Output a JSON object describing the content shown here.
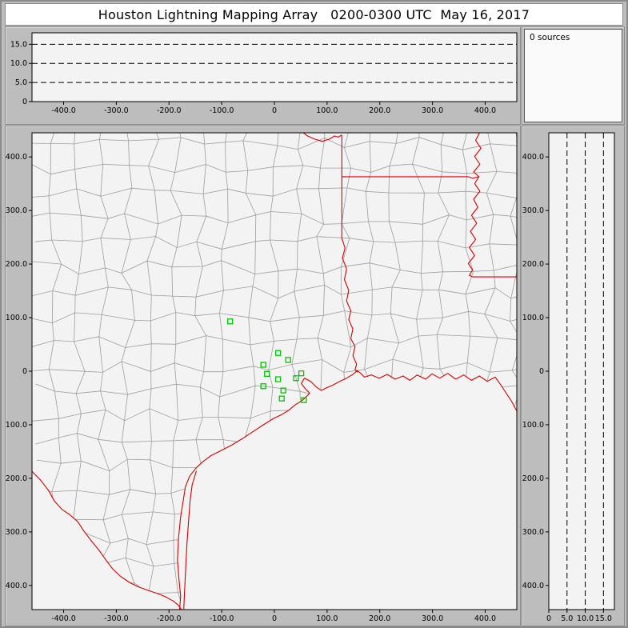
{
  "window": {
    "title": "Houston Lightning Mapping Array   0200-0300 UTC  May 16, 2017"
  },
  "sources_panel": {
    "label": "0 sources"
  },
  "colors": {
    "background": "#bdbdbd",
    "plot_bg": "#f3f3f3",
    "border_red": "#d40000",
    "county_gray": "#9d9d9d",
    "station_green": "#00c400",
    "axis": "#000000"
  },
  "chart_data": [
    {
      "id": "alt_vs_ew",
      "type": "scatter",
      "xlim": [
        -460,
        460
      ],
      "ylim": [
        0,
        18
      ],
      "xticks": [
        {
          "v": -400,
          "label": "-400.0"
        },
        {
          "v": -300,
          "label": "-300.0"
        },
        {
          "v": -200,
          "label": "-200.0"
        },
        {
          "v": -100,
          "label": "-100.0"
        },
        {
          "v": 0,
          "label": "0"
        },
        {
          "v": 100,
          "label": "100.0"
        },
        {
          "v": 200,
          "label": "200.0"
        },
        {
          "v": 300,
          "label": "300.0"
        },
        {
          "v": 400,
          "label": "400.0"
        }
      ],
      "yticks": [
        {
          "v": 15,
          "label": "15.0"
        },
        {
          "v": 10,
          "label": "10.0"
        },
        {
          "v": 5,
          "label": "5.0"
        },
        {
          "v": 0,
          "label": "0"
        }
      ],
      "dashed_hlines": [
        5,
        10,
        15
      ],
      "points": []
    },
    {
      "id": "plan_view_map",
      "type": "scatter",
      "xlim": [
        -460,
        460
      ],
      "ylim": [
        -445,
        445
      ],
      "xticks": [
        {
          "v": -400,
          "label": "-400.0"
        },
        {
          "v": -300,
          "label": "-300.0"
        },
        {
          "v": -200,
          "label": "-200.0"
        },
        {
          "v": -100,
          "label": "-100.0"
        },
        {
          "v": 0,
          "label": "0"
        },
        {
          "v": 100,
          "label": "100.0"
        },
        {
          "v": 200,
          "label": "200.0"
        },
        {
          "v": 300,
          "label": "300.0"
        },
        {
          "v": 400,
          "label": "400.0"
        }
      ],
      "yticks": [
        {
          "v": 400,
          "label": "400.0"
        },
        {
          "v": 300,
          "label": "300.0"
        },
        {
          "v": 200,
          "label": "200.0"
        },
        {
          "v": 100,
          "label": "100.0"
        },
        {
          "v": 0,
          "label": "0"
        },
        {
          "v": -100,
          "label": "-100.0"
        },
        {
          "v": -200,
          "label": "-200.0"
        },
        {
          "v": -300,
          "label": "-300.0"
        },
        {
          "v": -400,
          "label": "-400.0"
        }
      ],
      "stations": [
        [
          -84,
          93
        ],
        [
          7,
          34
        ],
        [
          26,
          21
        ],
        [
          -21,
          12
        ],
        [
          -14,
          -5
        ],
        [
          7,
          -15
        ],
        [
          -21,
          -28
        ],
        [
          17,
          -36
        ],
        [
          51,
          -4
        ],
        [
          41,
          -13
        ],
        [
          14,
          -51
        ],
        [
          56,
          -54
        ]
      ],
      "county_grid": {
        "step_km": 46,
        "jitter_km": 26
      },
      "map_lines_red": {
        "coast": [
          [
            -180,
            -447
          ],
          [
            -178,
            -420
          ],
          [
            -181,
            -390
          ],
          [
            -184,
            -352
          ],
          [
            -182,
            -312
          ],
          [
            -178,
            -272
          ],
          [
            -173,
            -242
          ],
          [
            -169,
            -216
          ],
          [
            -161,
            -196
          ],
          [
            -149,
            -181
          ],
          [
            -136,
            -169
          ],
          [
            -121,
            -158
          ],
          [
            -101,
            -148
          ],
          [
            -81,
            -138
          ],
          [
            -61,
            -126
          ],
          [
            -41,
            -113
          ],
          [
            -21,
            -100
          ],
          [
            -1,
            -88
          ],
          [
            14,
            -81
          ],
          [
            27,
            -73
          ],
          [
            39,
            -63
          ],
          [
            51,
            -56
          ],
          [
            59,
            -49
          ],
          [
            67,
            -41
          ],
          [
            59,
            -33
          ],
          [
            51,
            -23
          ],
          [
            57,
            -13
          ],
          [
            69,
            -19
          ],
          [
            79,
            -29
          ],
          [
            89,
            -36
          ],
          [
            99,
            -31
          ],
          [
            111,
            -26
          ],
          [
            124,
            -19
          ],
          [
            137,
            -13
          ],
          [
            149,
            -6
          ],
          [
            157,
            1
          ],
          [
            164,
            -4
          ],
          [
            171,
            -11
          ],
          [
            184,
            -7
          ],
          [
            199,
            -13
          ],
          [
            214,
            -6
          ],
          [
            229,
            -15
          ],
          [
            244,
            -9
          ],
          [
            257,
            -17
          ],
          [
            271,
            -7
          ],
          [
            287,
            -15
          ],
          [
            299,
            -5
          ],
          [
            314,
            -13
          ],
          [
            329,
            -4
          ],
          [
            344,
            -15
          ],
          [
            359,
            -7
          ],
          [
            374,
            -17
          ],
          [
            389,
            -9
          ],
          [
            404,
            -19
          ],
          [
            419,
            -11
          ],
          [
            430,
            -26
          ],
          [
            440,
            -41
          ],
          [
            450,
            -56
          ],
          [
            458,
            -71
          ],
          [
            464,
            -80
          ]
        ],
        "rio_grande": [
          [
            -462,
            -185
          ],
          [
            -444,
            -203
          ],
          [
            -429,
            -222
          ],
          [
            -417,
            -243
          ],
          [
            -403,
            -258
          ],
          [
            -388,
            -268
          ],
          [
            -373,
            -281
          ],
          [
            -362,
            -298
          ],
          [
            -348,
            -316
          ],
          [
            -333,
            -334
          ],
          [
            -320,
            -352
          ],
          [
            -307,
            -369
          ],
          [
            -292,
            -383
          ],
          [
            -274,
            -395
          ],
          [
            -257,
            -403
          ],
          [
            -240,
            -409
          ],
          [
            -222,
            -415
          ],
          [
            -207,
            -421
          ],
          [
            -192,
            -429
          ],
          [
            -182,
            -437
          ],
          [
            -177,
            -444
          ],
          [
            -180,
            -447
          ]
        ],
        "red_river": [
          [
            52,
            447
          ],
          [
            63,
            439
          ],
          [
            77,
            433
          ],
          [
            91,
            429
          ],
          [
            104,
            433
          ],
          [
            114,
            439
          ],
          [
            121,
            437
          ],
          [
            128,
            441
          ]
        ],
        "tx_ar_la_state_line": [
          [
            128,
            441
          ],
          [
            128,
            363
          ],
          [
            128,
            248
          ]
        ],
        "ar_la_33n_line": [
          [
            128,
            363
          ],
          [
            200,
            363
          ],
          [
            280,
            363
          ],
          [
            340,
            363
          ],
          [
            368,
            363
          ],
          [
            376,
            360
          ],
          [
            388,
            363
          ]
        ],
        "sabine_river": [
          [
            128,
            248
          ],
          [
            134,
            230
          ],
          [
            129,
            211
          ],
          [
            137,
            191
          ],
          [
            133,
            171
          ],
          [
            141,
            151
          ],
          [
            137,
            131
          ],
          [
            145,
            113
          ],
          [
            141,
            96
          ],
          [
            149,
            79
          ],
          [
            145,
            61
          ],
          [
            153,
            46
          ],
          [
            149,
            29
          ],
          [
            156,
            13
          ],
          [
            153,
            3
          ],
          [
            158,
            -2
          ]
        ],
        "mississippi_river": [
          [
            390,
            447
          ],
          [
            382,
            431
          ],
          [
            392,
            416
          ],
          [
            380,
            401
          ],
          [
            390,
            386
          ],
          [
            378,
            372
          ],
          [
            388,
            363
          ],
          [
            380,
            350
          ],
          [
            390,
            336
          ],
          [
            378,
            321
          ],
          [
            386,
            306
          ],
          [
            374,
            291
          ],
          [
            384,
            276
          ],
          [
            372,
            261
          ],
          [
            382,
            246
          ],
          [
            370,
            231
          ],
          [
            380,
            216
          ],
          [
            368,
            201
          ],
          [
            376,
            189
          ],
          [
            370,
            179
          ],
          [
            376,
            176
          ]
        ],
        "la_ms_31n_line": [
          [
            376,
            176
          ],
          [
            420,
            176
          ],
          [
            464,
            176
          ]
        ],
        "barrier_island": [
          [
            -148,
            -186
          ],
          [
            -156,
            -212
          ],
          [
            -160,
            -242
          ],
          [
            -163,
            -282
          ],
          [
            -166,
            -322
          ],
          [
            -168,
            -362
          ],
          [
            -170,
            -402
          ],
          [
            -172,
            -444
          ]
        ]
      }
    },
    {
      "id": "alt_vs_ns",
      "type": "scatter",
      "xlim": [
        0,
        18
      ],
      "ylim": [
        -445,
        445
      ],
      "xticks": [
        {
          "v": 0,
          "label": "0"
        },
        {
          "v": 5,
          "label": "5.0"
        },
        {
          "v": 10,
          "label": "10.0"
        },
        {
          "v": 15,
          "label": "15.0"
        }
      ],
      "yticks": [
        {
          "v": 400,
          "label": "400.0"
        },
        {
          "v": 300,
          "label": "300.0"
        },
        {
          "v": 200,
          "label": "200.0"
        },
        {
          "v": 100,
          "label": "100.0"
        },
        {
          "v": 0,
          "label": "0"
        },
        {
          "v": -100,
          "label": "-100.0"
        },
        {
          "v": -200,
          "label": "-200.0"
        },
        {
          "v": -300,
          "label": "-300.0"
        },
        {
          "v": -400,
          "label": "-400.0"
        }
      ],
      "dashed_vlines": [
        5,
        10,
        15
      ],
      "points": []
    }
  ]
}
